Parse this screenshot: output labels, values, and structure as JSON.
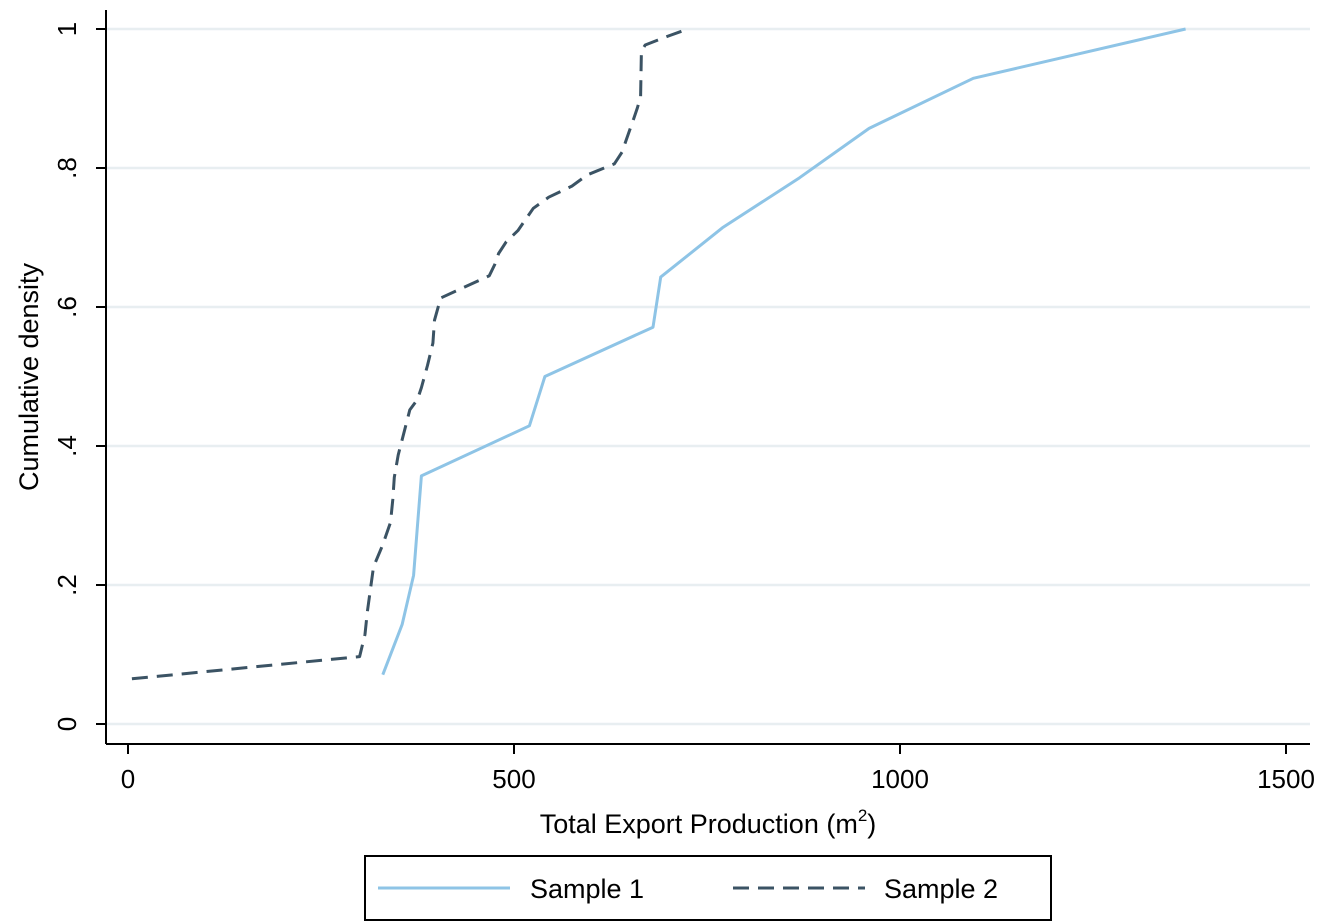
{
  "chart_data": {
    "type": "line",
    "title": "",
    "xlabel": "Total Export Production (m",
    "xlabel_sup": "2",
    "xlabel_suffix": ")",
    "ylabel": "Cumulative density",
    "xlim": [
      0,
      1500
    ],
    "ylim": [
      0,
      1
    ],
    "xticks": [
      0,
      500,
      1000,
      1500
    ],
    "xtick_labels": [
      "0",
      "500",
      "1000",
      "1500"
    ],
    "yticks": [
      0,
      0.2,
      0.4,
      0.6,
      0.8,
      1
    ],
    "ytick_labels": [
      "0",
      ".2",
      ".4",
      ".6",
      ".8",
      "1"
    ],
    "grid": true,
    "legend_position": "bottom",
    "series": [
      {
        "name": "Sample 1",
        "color": "#8ec4e6",
        "dash": "solid",
        "x": [
          330,
          355,
          370,
          375,
          380,
          520,
          540,
          680,
          690,
          770,
          870,
          960,
          1095,
          1370
        ],
        "y": [
          0.071,
          0.143,
          0.214,
          0.286,
          0.357,
          0.429,
          0.5,
          0.571,
          0.643,
          0.714,
          0.786,
          0.857,
          0.929,
          1.0
        ]
      },
      {
        "name": "Sample 2",
        "color": "#3b5364",
        "dash": "dashed",
        "x": [
          5,
          300,
          307,
          310,
          318,
          330,
          335,
          340,
          343,
          345,
          350,
          365,
          375,
          380,
          388,
          395,
          397,
          405,
          468,
          475,
          480,
          490,
          505,
          525,
          545,
          575,
          595,
          630,
          640,
          645,
          650,
          655,
          660,
          664,
          665,
          670,
          700,
          725
        ],
        "y": [
          0.065,
          0.097,
          0.129,
          0.161,
          0.226,
          0.258,
          0.274,
          0.29,
          0.323,
          0.355,
          0.387,
          0.452,
          0.467,
          0.484,
          0.516,
          0.548,
          0.581,
          0.613,
          0.645,
          0.661,
          0.677,
          0.694,
          0.71,
          0.742,
          0.758,
          0.774,
          0.79,
          0.806,
          0.823,
          0.839,
          0.855,
          0.871,
          0.887,
          0.903,
          0.968,
          0.977,
          0.99,
          1.0
        ]
      }
    ]
  }
}
